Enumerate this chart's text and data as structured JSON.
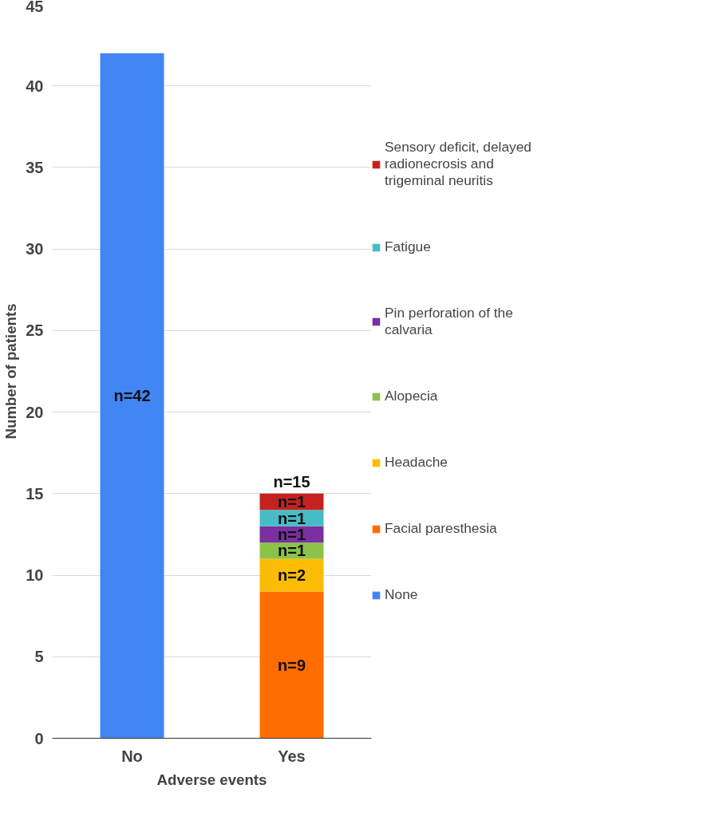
{
  "chart_data": {
    "type": "bar",
    "stacked": true,
    "xlabel": "Adverse events",
    "ylabel": "Number of patients",
    "categories": [
      "No",
      "Yes"
    ],
    "series": [
      {
        "name": "None",
        "color": "#4285f4",
        "values": [
          42,
          null
        ],
        "value_labels": [
          "n=42",
          null
        ]
      },
      {
        "name": "Facial paresthesia",
        "color": "#ff6d01",
        "values": [
          null,
          9
        ],
        "value_labels": [
          null,
          "n=9"
        ]
      },
      {
        "name": "Headache",
        "color": "#fbbc04",
        "values": [
          null,
          2
        ],
        "value_labels": [
          null,
          "n=2"
        ]
      },
      {
        "name": "Alopecia",
        "color": "#8bc34a",
        "values": [
          null,
          1
        ],
        "value_labels": [
          null,
          "n=1"
        ]
      },
      {
        "name": "Pin perforation of the calvaria",
        "color": "#7b2fa0",
        "values": [
          null,
          1
        ],
        "value_labels": [
          null,
          "n=1"
        ]
      },
      {
        "name": "Fatigue",
        "color": "#46bdc6",
        "values": [
          null,
          1
        ],
        "value_labels": [
          null,
          "n=1"
        ]
      },
      {
        "name": "Sensory deficit, delayed radionecrosis and trigeminal neuritis",
        "color": "#c5221f",
        "values": [
          null,
          1
        ],
        "value_labels": [
          null,
          "n=1"
        ]
      }
    ],
    "totals": [
      null,
      "n=15"
    ],
    "ylim": [
      0,
      45
    ],
    "yticks": [
      0,
      5,
      10,
      15,
      20,
      25,
      30,
      35,
      40,
      45
    ],
    "grid": "y",
    "legend": "right"
  }
}
